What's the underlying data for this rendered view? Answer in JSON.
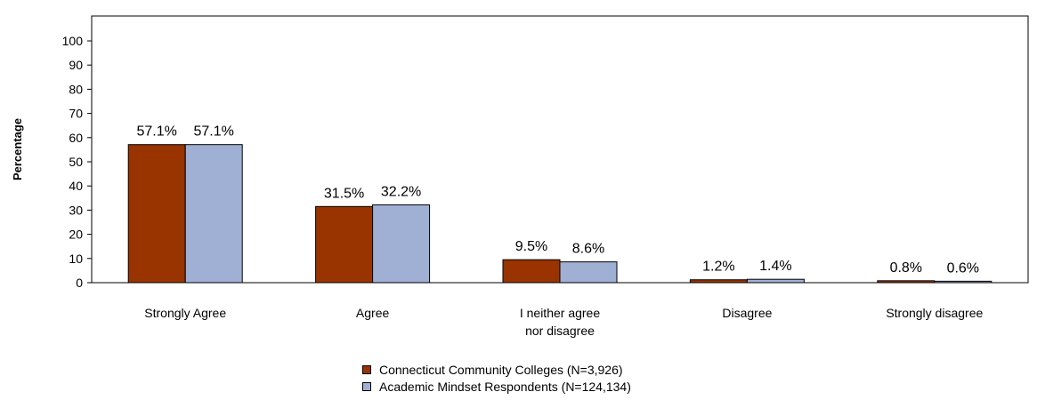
{
  "chart_data": {
    "type": "bar",
    "title": "",
    "xlabel": "",
    "ylabel": "Percentage",
    "ylim": [
      0,
      100
    ],
    "yticks": [
      0,
      10,
      20,
      30,
      40,
      50,
      60,
      70,
      80,
      90,
      100
    ],
    "categories": [
      "Strongly Agree",
      "Agree",
      "I neither agree nor disagree",
      "Disagree",
      "Strongly disagree"
    ],
    "category_lines": [
      [
        "Strongly Agree"
      ],
      [
        "Agree"
      ],
      [
        "I neither agree",
        "nor disagree"
      ],
      [
        "Disagree"
      ],
      [
        "Strongly disagree"
      ]
    ],
    "series": [
      {
        "name": "Connecticut Community Colleges (N=3,926)",
        "color": "#993300",
        "values": [
          57.1,
          31.5,
          9.5,
          1.2,
          0.8
        ],
        "labels": [
          "57.1%",
          "31.5%",
          "9.5%",
          "1.2%",
          "0.8%"
        ]
      },
      {
        "name": "Academic Mindset Respondents (N=124,134)",
        "color": "#A0B0D4",
        "values": [
          57.1,
          32.2,
          8.6,
          1.4,
          0.6
        ],
        "labels": [
          "57.1%",
          "32.2%",
          "8.6%",
          "1.4%",
          "0.6%"
        ]
      }
    ],
    "grid": false,
    "legend_position": "bottom-center"
  }
}
